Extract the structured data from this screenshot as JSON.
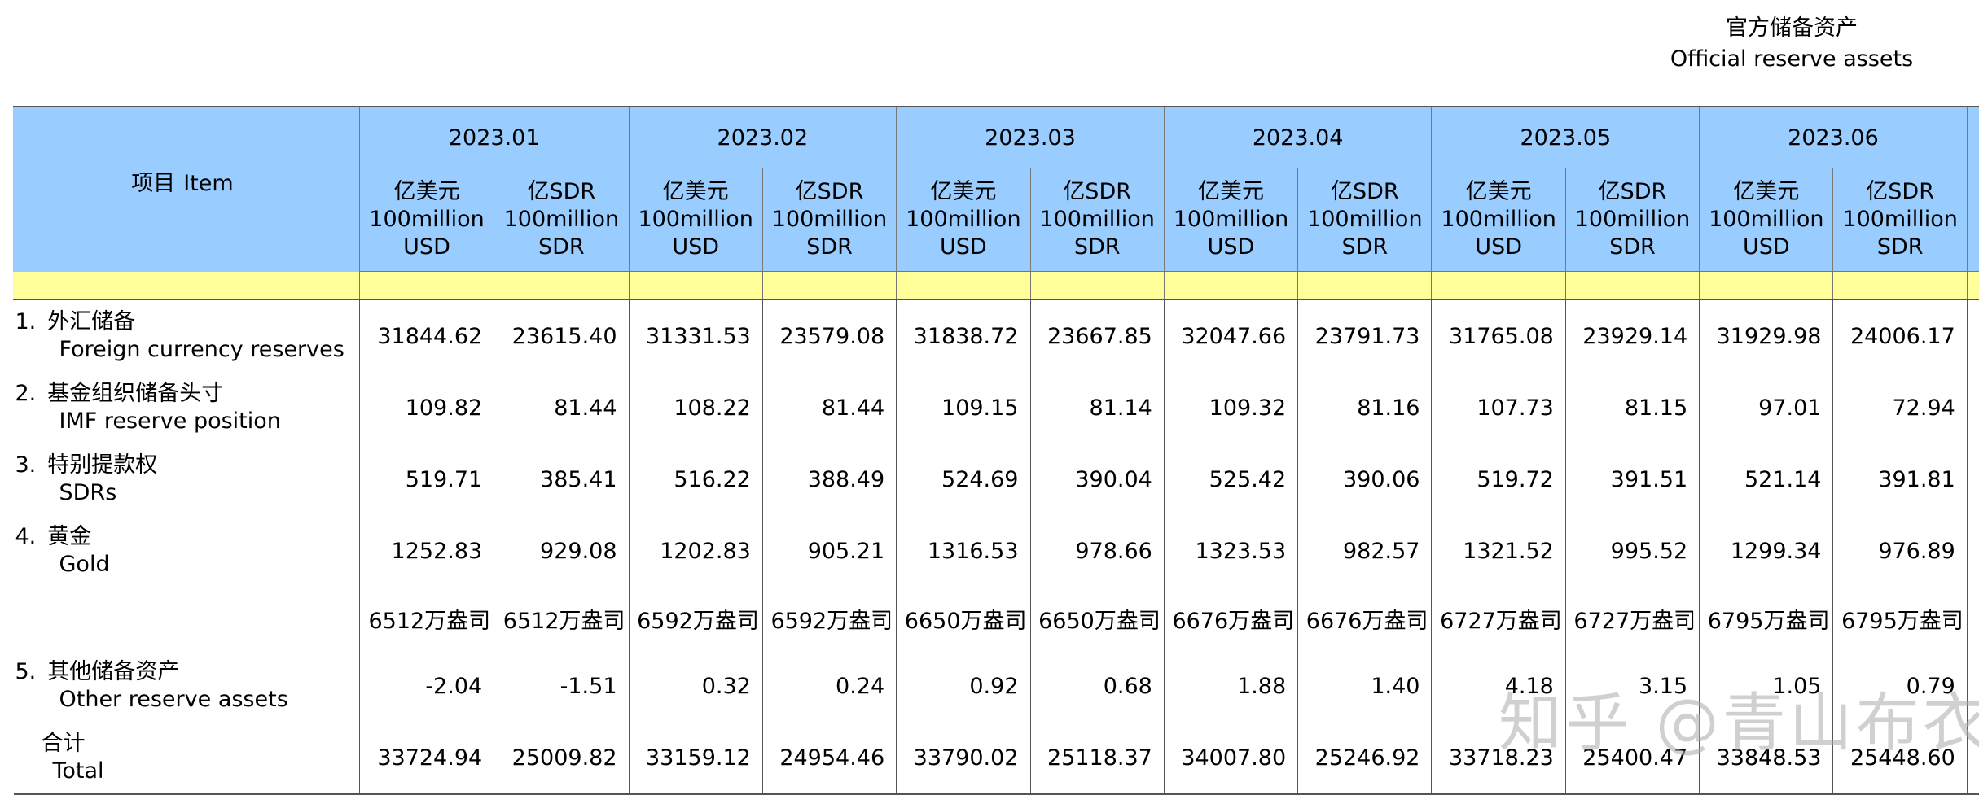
{
  "title": {
    "zh": "官方储备资产",
    "en": "Official reserve assets"
  },
  "item_header": {
    "zh": "项目",
    "en": "Item"
  },
  "units": {
    "usd": [
      "亿美元",
      "100million",
      "USD"
    ],
    "sdr": [
      "亿SDR",
      "100million",
      "SDR"
    ]
  },
  "months": [
    "2023.01",
    "2023.02",
    "2023.03",
    "2023.04",
    "2023.05",
    "2023.06"
  ],
  "rows": [
    {
      "num": "1.",
      "zh": "外汇储备",
      "en": "Foreign currency reserves",
      "values": [
        "31844.62",
        "23615.40",
        "31331.53",
        "23579.08",
        "31838.72",
        "23667.85",
        "32047.66",
        "23791.73",
        "31765.08",
        "23929.14",
        "31929.98",
        "24006.17"
      ]
    },
    {
      "num": "2.",
      "zh": "基金组织储备头寸",
      "en": "IMF reserve position",
      "values": [
        "109.82",
        "81.44",
        "108.22",
        "81.44",
        "109.15",
        "81.14",
        "109.32",
        "81.16",
        "107.73",
        "81.15",
        "97.01",
        "72.94"
      ]
    },
    {
      "num": "3.",
      "zh": "特别提款权",
      "en": "SDRs",
      "values": [
        "519.71",
        "385.41",
        "516.22",
        "388.49",
        "524.69",
        "390.04",
        "525.42",
        "390.06",
        "519.72",
        "391.51",
        "521.14",
        "391.81"
      ]
    },
    {
      "num": "4.",
      "zh": "黄金",
      "en": "Gold",
      "values": [
        "1252.83",
        "929.08",
        "1202.83",
        "905.21",
        "1316.53",
        "978.66",
        "1323.53",
        "982.57",
        "1321.52",
        "995.52",
        "1299.34",
        "976.89"
      ]
    },
    {
      "num": "",
      "zh": "",
      "en": "",
      "values": [
        "6512万盎司",
        "6512万盎司",
        "6592万盎司",
        "6592万盎司",
        "6650万盎司",
        "6650万盎司",
        "6676万盎司",
        "6676万盎司",
        "6727万盎司",
        "6727万盎司",
        "6795万盎司",
        "6795万盎司"
      ]
    },
    {
      "num": "5.",
      "zh": "其他储备资产",
      "en": "Other reserve assets",
      "values": [
        "-2.04",
        "-1.51",
        "0.32",
        "0.24",
        "0.92",
        "0.68",
        "1.88",
        "1.40",
        "4.18",
        "3.15",
        "1.05",
        "0.79"
      ]
    },
    {
      "num": "",
      "zh": "合计",
      "en": "Total",
      "values": [
        "33724.94",
        "25009.82",
        "33159.12",
        "24954.46",
        "33790.02",
        "25118.37",
        "34007.80",
        "25246.92",
        "33718.23",
        "25400.47",
        "33848.53",
        "25448.60"
      ]
    }
  ],
  "watermark": "知乎 @青山布衣"
}
